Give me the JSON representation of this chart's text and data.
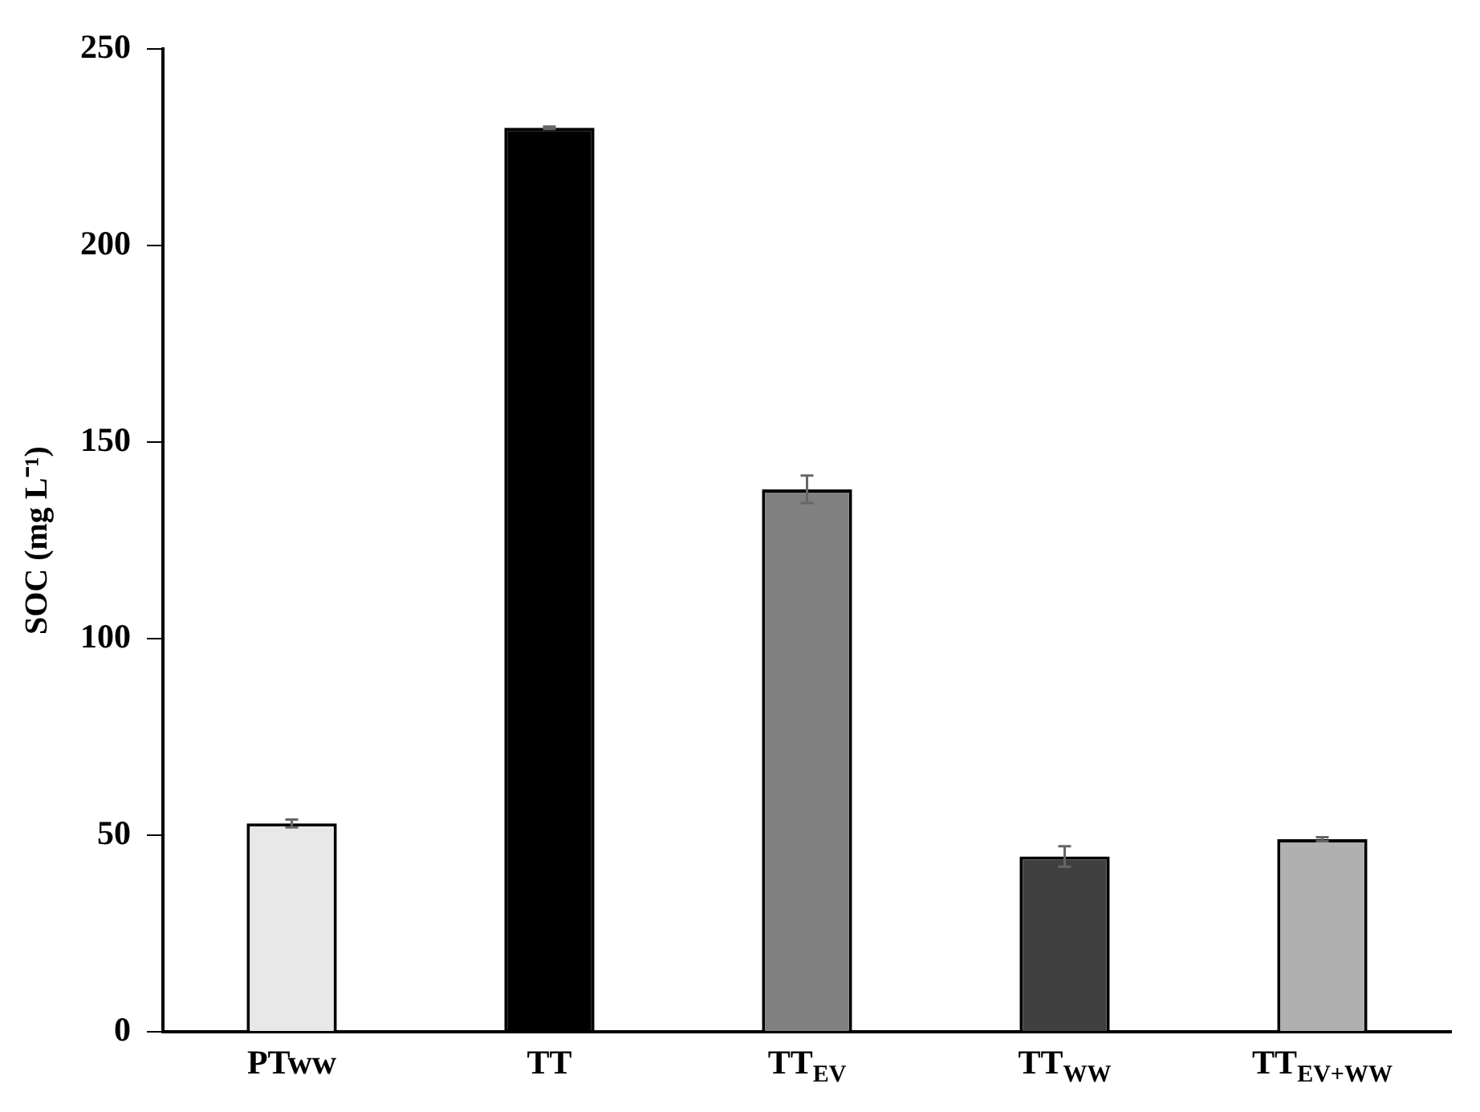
{
  "chart_data": {
    "type": "bar",
    "ylabel": "SOC (mg L⁻¹)",
    "categories": [
      "PTww",
      "TT",
      "TT$_{EV}$",
      "TT$_{WW}$",
      "TT$_{EV+WW}$"
    ],
    "values": [
      53,
      230,
      138,
      44.6,
      49
    ],
    "errors": [
      1,
      0.3,
      3.5,
      2.6,
      0.5
    ],
    "colors": [
      "#e8e8e8",
      "#000000",
      "#808080",
      "#404040",
      "#b0b0b0"
    ],
    "ylim": [
      0,
      250
    ],
    "yticks": [
      0,
      50,
      100,
      150,
      200,
      250
    ],
    "grid": false,
    "legend": false
  }
}
